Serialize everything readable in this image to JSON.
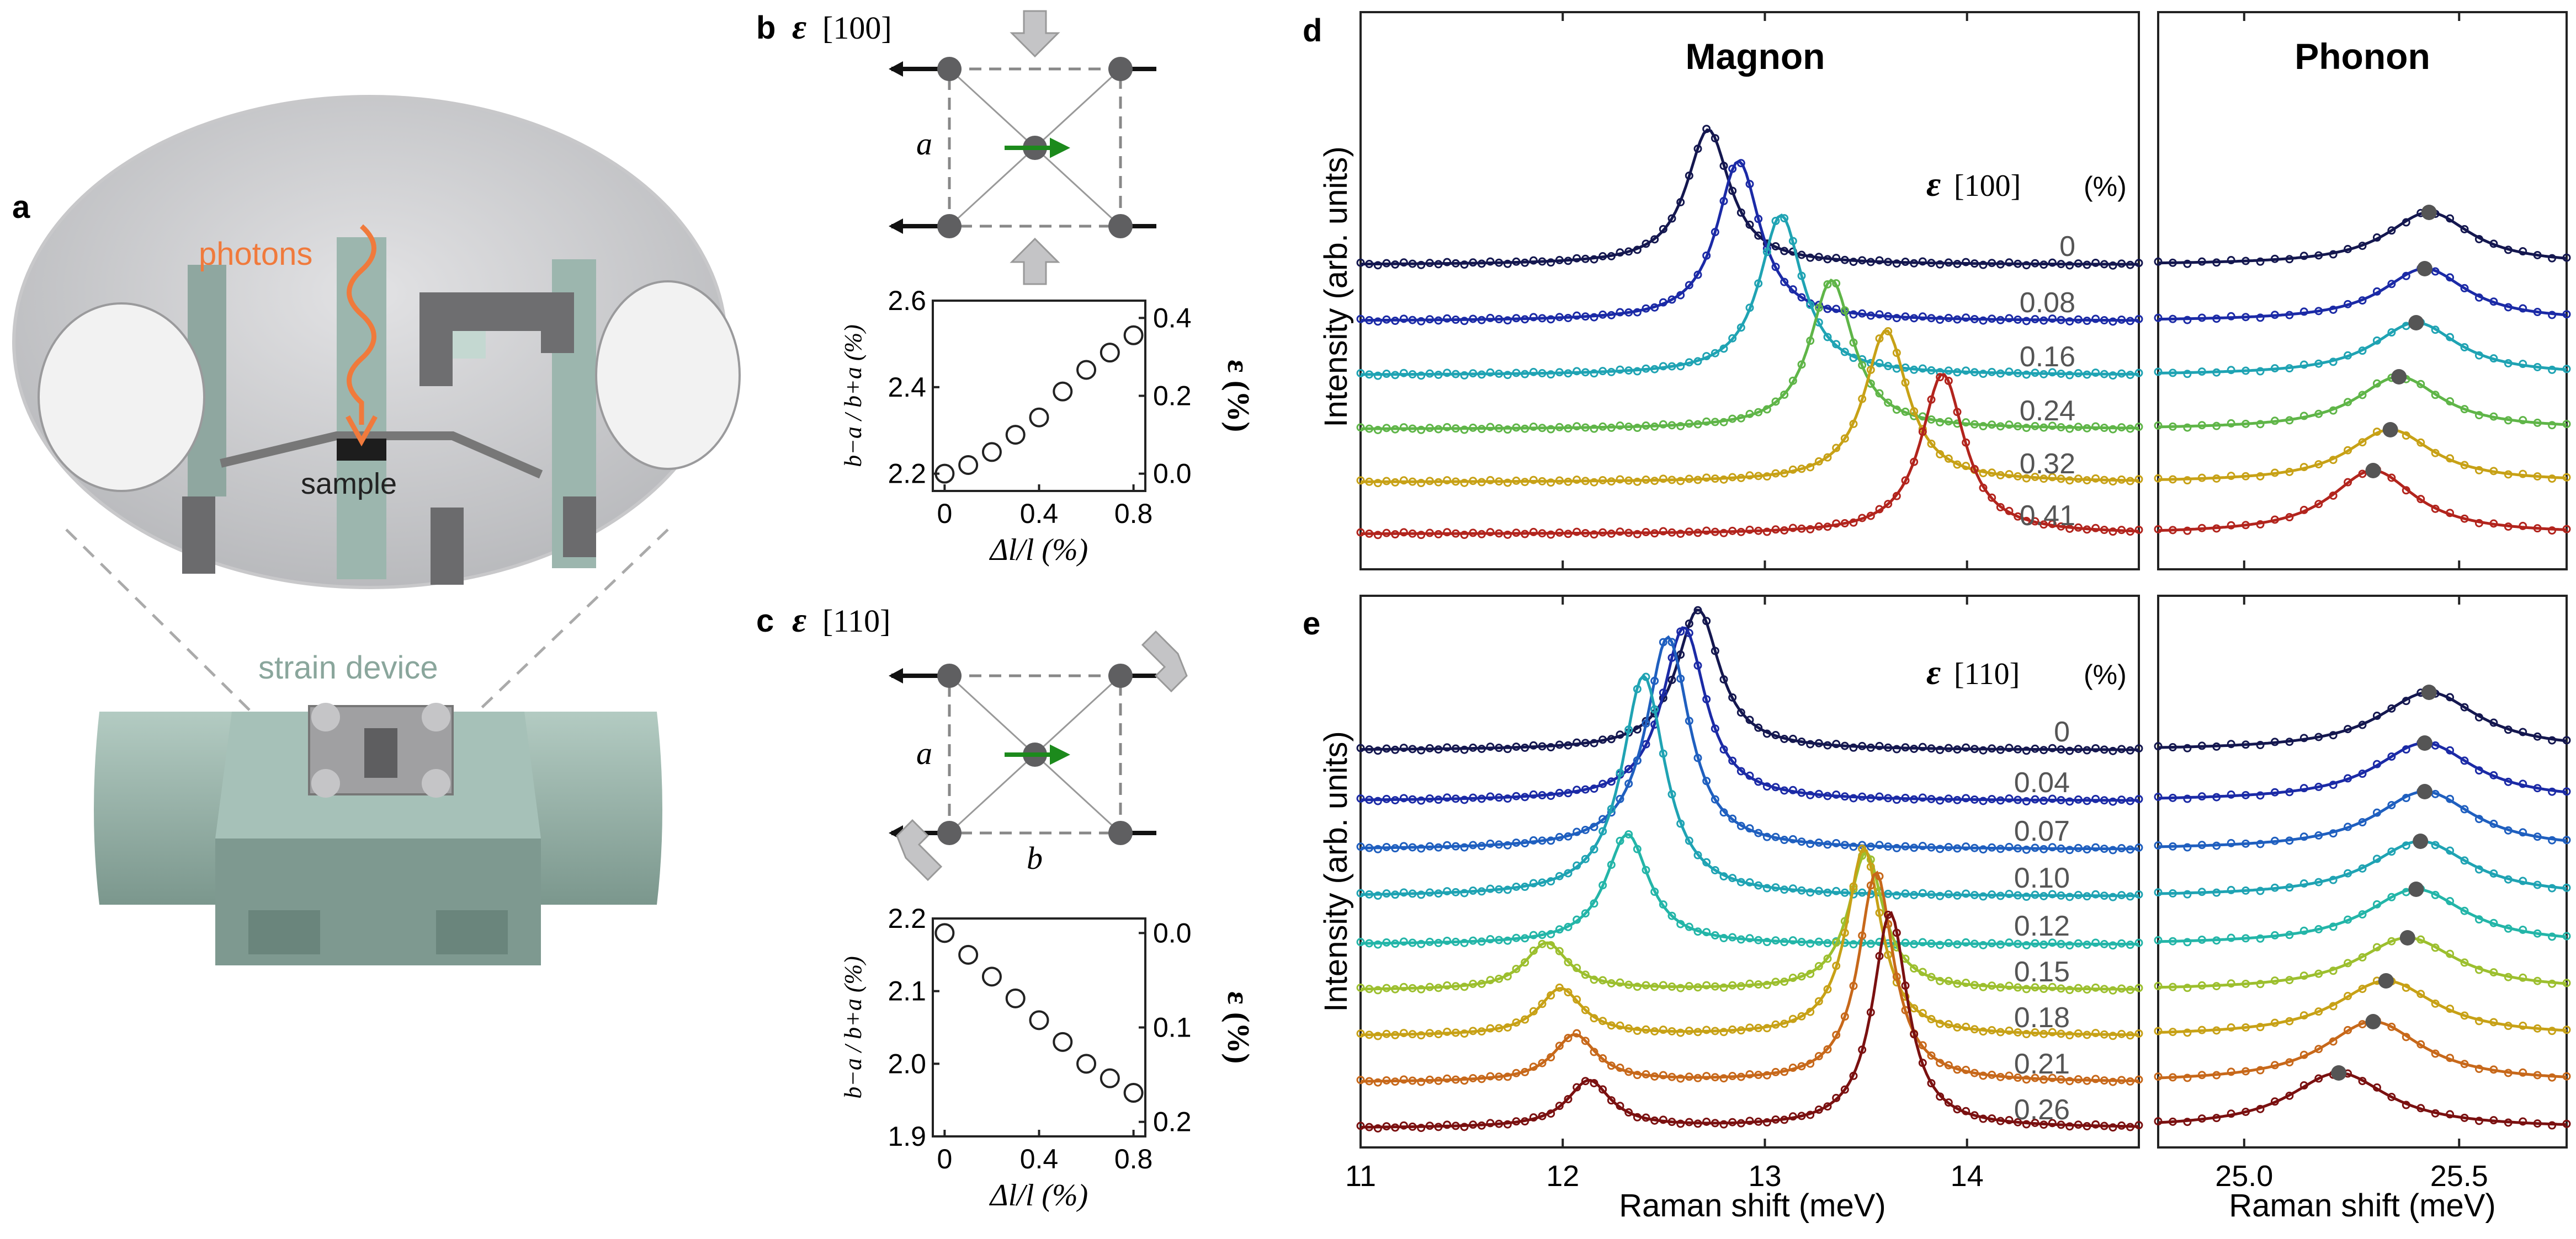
{
  "panels": {
    "a": "a",
    "b": "b",
    "c": "c",
    "d": "d",
    "e": "e"
  },
  "panel_a": {
    "photons": "photons",
    "sample": "sample",
    "strain_device": "strain device"
  },
  "lattice_b": {
    "title_sym": "ε",
    "title_dir": "[100]",
    "side_label": "a"
  },
  "lattice_c": {
    "title_sym": "ε",
    "title_dir": "[110]",
    "side_label": "a",
    "bottom_label": "b"
  },
  "heading_magnon": "Magnon",
  "heading_phonon": "Phonon",
  "intensity_label": "Intensity (arb. units)",
  "strain_header_d": {
    "sym": "ε",
    "dir": "[100]",
    "unit": "(%)"
  },
  "strain_header_e": {
    "sym": "ε",
    "dir": "[110]",
    "unit": "(%)"
  },
  "colors": {
    "dark_navy": "#14174f",
    "navy": "#1b2aa6",
    "blue": "#1f5fbf",
    "teal": "#1fa3b3",
    "cyan": "#23b5a8",
    "green": "#5fb548",
    "yellow_green": "#9cbf2e",
    "ochre": "#c7a116",
    "orange": "#c7681a",
    "red": "#b2241d",
    "dark_red": "#7a1010",
    "device": "#9cb8ad",
    "photon": "#f07a3c"
  },
  "chart_data": [
    {
      "id": "b-inset",
      "type": "scatter",
      "xlabel": "Δl/l (%)",
      "ylabel_left": "b−a / b+a (%)",
      "ylabel_right": "ε (%)",
      "xlim": [
        -0.05,
        0.85
      ],
      "ylim": [
        2.16,
        2.6
      ],
      "xticks": [
        "0",
        "0.4",
        "0.8"
      ],
      "yticks_left": [
        "2.2",
        "2.4",
        "2.6"
      ],
      "yticks_right": [
        "0.0",
        "0.2",
        "0.4"
      ],
      "x": [
        0,
        0.1,
        0.2,
        0.3,
        0.4,
        0.5,
        0.6,
        0.7,
        0.8
      ],
      "y": [
        2.2,
        2.22,
        2.25,
        2.29,
        2.33,
        2.39,
        2.44,
        2.48,
        2.52
      ]
    },
    {
      "id": "c-inset",
      "type": "scatter",
      "xlabel": "Δl/l (%)",
      "ylabel_left": "b−a / b+a (%)",
      "ylabel_right": "ε (%)",
      "xlim": [
        -0.05,
        0.85
      ],
      "ylim": [
        1.9,
        2.2
      ],
      "xticks": [
        "0",
        "0.4",
        "0.8"
      ],
      "yticks_left": [
        "1.9",
        "2.0",
        "2.1",
        "2.2"
      ],
      "yticks_right": [
        "0.0",
        "0.1",
        "0.2"
      ],
      "x": [
        0,
        0.1,
        0.2,
        0.3,
        0.4,
        0.5,
        0.6,
        0.7,
        0.8
      ],
      "y": [
        2.18,
        2.15,
        2.12,
        2.09,
        2.06,
        2.03,
        2.0,
        1.98,
        1.96
      ]
    },
    {
      "id": "d-magnon",
      "type": "line",
      "xlabel": "",
      "xlim": [
        11,
        14.85
      ],
      "xticks": [
        "11",
        "12",
        "13",
        "14"
      ],
      "strain_labels": [
        "0",
        "0.08",
        "0.16",
        "0.24",
        "0.32",
        "0.41"
      ],
      "peak_meV": [
        12.72,
        12.87,
        13.08,
        13.33,
        13.6,
        13.88
      ]
    },
    {
      "id": "d-phonon",
      "type": "line",
      "xlim": [
        24.8,
        25.75
      ],
      "xticks": [
        "25.0",
        "25.5"
      ],
      "peak_meV": [
        25.43,
        25.42,
        25.4,
        25.36,
        25.34,
        25.3
      ]
    },
    {
      "id": "e-magnon",
      "type": "line",
      "xlabel": "Raman shift (meV)",
      "xlim": [
        11,
        14.85
      ],
      "xticks": [
        "11",
        "12",
        "13",
        "14"
      ],
      "strain_labels": [
        "0",
        "0.04",
        "0.07",
        "0.10",
        "0.12",
        "0.15",
        "0.18",
        "0.21",
        "0.26"
      ],
      "peak_meV": [
        12.67,
        12.6,
        12.52,
        12.4,
        12.32,
        11.92,
        11.99,
        12.06,
        12.13
      ],
      "second_peak_meV": [
        null,
        null,
        null,
        null,
        null,
        13.5,
        13.49,
        13.55,
        13.62
      ]
    },
    {
      "id": "e-phonon",
      "type": "line",
      "xlabel": "Raman shift (meV)",
      "xlim": [
        24.8,
        25.75
      ],
      "xticks": [
        "25.0",
        "25.5"
      ],
      "peak_meV": [
        25.43,
        25.42,
        25.42,
        25.41,
        25.4,
        25.38,
        25.33,
        25.3,
        25.22
      ]
    }
  ]
}
